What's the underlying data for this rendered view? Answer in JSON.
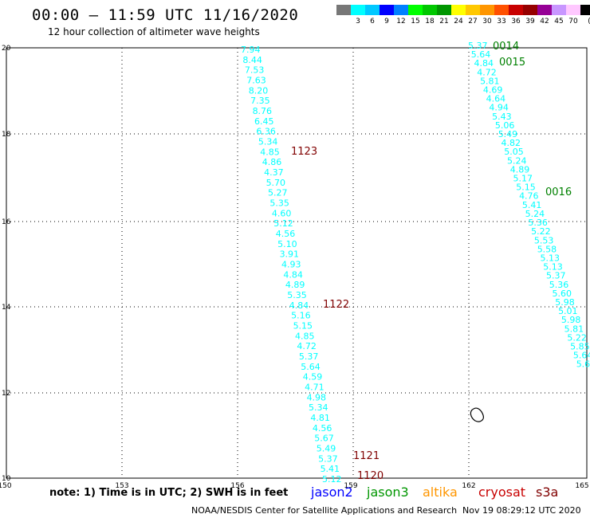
{
  "title": "00:00 – 11:59 UTC 11/16/2020",
  "subtitle": "12 hour collection of altimeter wave heights",
  "legend": {
    "unit": "(ft)",
    "colors": [
      "#777777",
      "#00ffff",
      "#00c8ff",
      "#0000ff",
      "#0080ff",
      "#00ff00",
      "#00c800",
      "#009600",
      "#ffff00",
      "#ffc800",
      "#ff9600",
      "#ff5000",
      "#c80000",
      "#960000",
      "#960096",
      "#c896ff",
      "#ffc8ff",
      "#000000"
    ],
    "labels": [
      "3",
      "6",
      "9",
      "12",
      "15",
      "18",
      "21",
      "24",
      "27",
      "30",
      "33",
      "36",
      "39",
      "42",
      "45",
      "70"
    ]
  },
  "axes": {
    "lon_ticks": [
      "150",
      "153",
      "156",
      "159",
      "162",
      "165"
    ],
    "lat_ticks": [
      "20",
      "18",
      "16",
      "14",
      "12",
      "10"
    ]
  },
  "track_color": "#00ffff",
  "time_color_dark": "#800000",
  "time_color_green": "#008000",
  "tracks": [
    {
      "id": "west",
      "values": [
        "7.94",
        "8.44",
        "7.53",
        "7.63",
        "8.20",
        "7.35",
        "8.76",
        "6.45",
        "6.36",
        "5.34",
        "4.85",
        "4.86",
        "4.37",
        "5.70",
        "5.27",
        "5.35",
        "4.60",
        "5.12",
        "4.56",
        "5.10",
        "3.91",
        "4.93",
        "4.84",
        "4.89",
        "5.35",
        "4.84",
        "5.16",
        "5.15",
        "4.85",
        "4.72",
        "5.37",
        "5.64",
        "4.59",
        "4.71",
        "4.98",
        "5.34",
        "4.81",
        "4.56",
        "5.67",
        "5.49",
        "5.37",
        "5.41",
        "5.12"
      ]
    },
    {
      "id": "east",
      "values": [
        "5.37",
        "5.64",
        "4.84",
        "4.72",
        "5.81",
        "4.69",
        "4.64",
        "4.94",
        "5.43",
        "5.06",
        "5.49",
        "4.82",
        "5.05",
        "5.24",
        "4.89",
        "5.17",
        "5.15",
        "4.76",
        "5.41",
        "5.24",
        "5.36",
        "5.22",
        "5.53",
        "5.58",
        "5.13",
        "5.13",
        "5.37",
        "5.36",
        "5.60",
        "5.98",
        "5.01",
        "5.98",
        "5.81",
        "5.22",
        "5.85",
        "5.64",
        "5.6",
        "5.7",
        "5.8",
        "5.9"
      ]
    }
  ],
  "time_labels": [
    {
      "text": "1123",
      "color": "dark"
    },
    {
      "text": "1122",
      "color": "dark"
    },
    {
      "text": "1121",
      "color": "dark"
    },
    {
      "text": "1120",
      "color": "dark"
    },
    {
      "text": "0014",
      "color": "green"
    },
    {
      "text": "0015",
      "color": "green"
    },
    {
      "text": "0016",
      "color": "green"
    }
  ],
  "footer": {
    "note": "note: 1) Time is in UTC; 2) SWH is in feet",
    "satellites": [
      {
        "name": "jason2",
        "color": "#0000ff"
      },
      {
        "name": "jason3",
        "color": "#009600"
      },
      {
        "name": "altika",
        "color": "#ff9600"
      },
      {
        "name": "cryosat",
        "color": "#c80000"
      },
      {
        "name": "s3a",
        "color": "#800000"
      }
    ],
    "credit": "NOAA/NESDIS Center for Satellite Applications and Research",
    "timestamp": "Nov 19 08:29:12 UTC 2020"
  }
}
